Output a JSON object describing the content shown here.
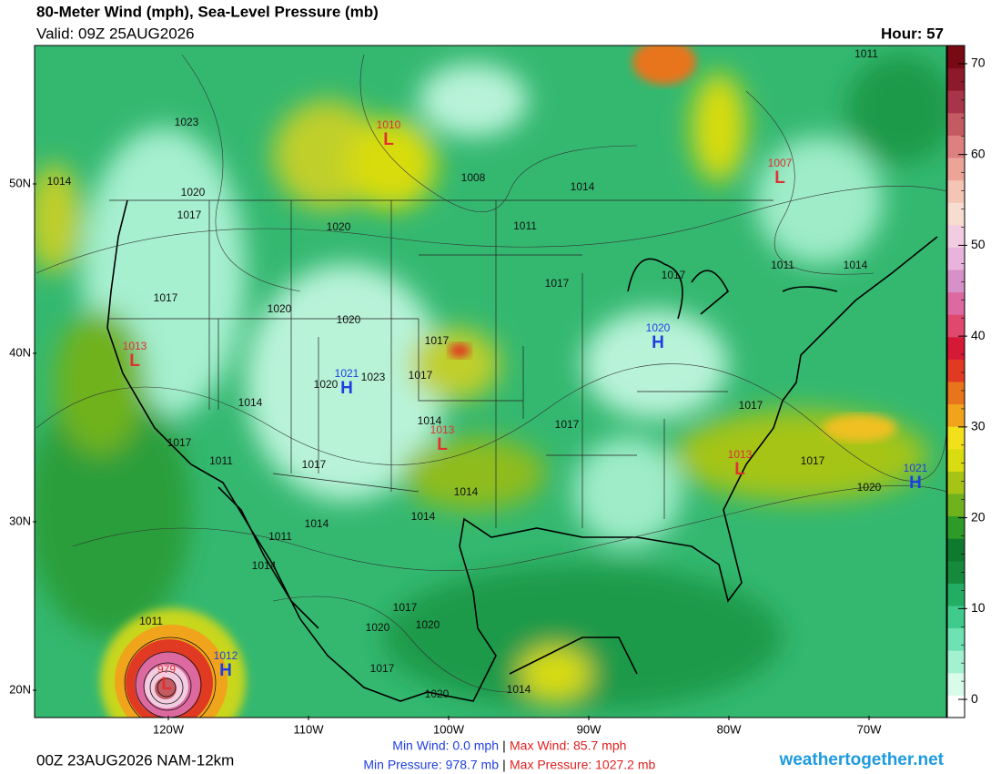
{
  "header": {
    "title": "80-Meter Wind (mph), Sea-Level Pressure (mb)",
    "valid": "Valid: 09Z 25AUG2026",
    "hour": "Hour: 57"
  },
  "map": {
    "lat_labels": [
      "50N",
      "40N",
      "30N",
      "20N"
    ],
    "lon_labels": [
      "120W",
      "110W",
      "100W",
      "90W",
      "80W",
      "70W"
    ],
    "pressure_centers": [
      {
        "type": "L",
        "value": 1010
      },
      {
        "type": "L",
        "value": 1007
      },
      {
        "type": "L",
        "value": 1013
      },
      {
        "type": "H",
        "value": 1021
      },
      {
        "type": "L",
        "value": 1013
      },
      {
        "type": "H",
        "value": 1020
      },
      {
        "type": "L",
        "value": 1013
      },
      {
        "type": "H",
        "value": 1021
      },
      {
        "type": "H",
        "value": 1012
      },
      {
        "type": "L",
        "value": 979
      }
    ],
    "isobar_labels": [
      1011,
      1023,
      1014,
      1020,
      1017,
      1008,
      1014,
      1020,
      1011,
      1017,
      1020,
      1020,
      1017,
      1017,
      1011,
      1014,
      1017,
      1017,
      1023,
      1020,
      1014,
      1014,
      1017,
      1017,
      1017,
      1011,
      1017,
      1014,
      1017,
      1020,
      1014,
      1014,
      1011,
      1014,
      1011,
      1017,
      1020,
      1020,
      1017,
      1020,
      1014
    ]
  },
  "colorbar": {
    "lim": [
      -2,
      72
    ],
    "ticks": [
      0,
      10,
      20,
      30,
      40,
      50,
      60,
      70
    ],
    "colors": [
      "#ffffff",
      "#d9fbe9",
      "#a3f1d1",
      "#6fe2b4",
      "#3fcb8c",
      "#23ad63",
      "#168a3c",
      "#0f7a2e",
      "#2e9a28",
      "#6fb21e",
      "#a5c416",
      "#d8dc10",
      "#f2e01a",
      "#f0a41c",
      "#e8741c",
      "#e03a22",
      "#d41a36",
      "#e0486e",
      "#dc6aa0",
      "#d890c8",
      "#e8b4dc",
      "#f2cce0",
      "#f6ddd0",
      "#f4c4b4",
      "#eca498",
      "#dc8080",
      "#c45a62",
      "#a8344a",
      "#8c1a2a",
      "#780a14"
    ]
  },
  "footer": {
    "run": "00Z 23AUG2026 NAM-12km",
    "min_wind": "Min Wind:  0.0 mph",
    "max_wind": "Max Wind:  85.7 mph",
    "min_pressure": "Min Pressure: 978.7 mb",
    "max_pressure": "Max Pressure: 1027.2 mb",
    "separator": "|",
    "site": "weathertogether.net"
  }
}
